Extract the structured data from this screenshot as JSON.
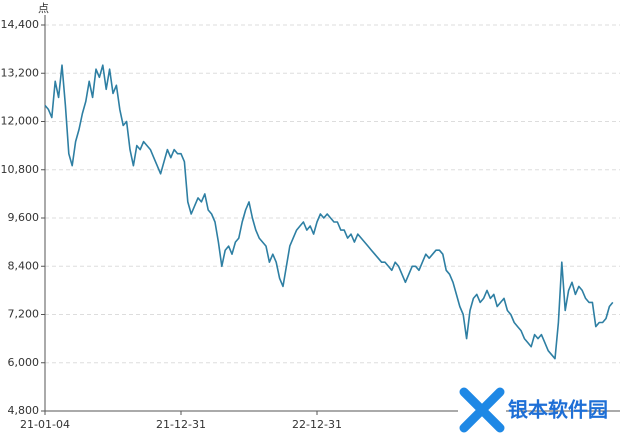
{
  "chart_data": {
    "type": "line",
    "y_label": "点",
    "categories": [
      "21-01-04",
      null,
      null,
      null,
      null,
      null,
      null,
      null,
      null,
      null,
      null,
      null,
      null,
      null,
      null,
      null,
      null,
      null,
      null,
      null,
      null,
      null,
      null,
      null,
      null,
      null,
      null,
      null,
      null,
      null,
      null,
      null,
      null,
      null,
      null,
      null,
      null,
      null,
      null,
      null,
      "21-12-31",
      null,
      null,
      null,
      null,
      null,
      null,
      null,
      null,
      null,
      null,
      null,
      null,
      null,
      null,
      null,
      null,
      null,
      null,
      null,
      null,
      null,
      null,
      null,
      null,
      null,
      null,
      null,
      null,
      null,
      null,
      null,
      null,
      null,
      null,
      null,
      null,
      null,
      null,
      null,
      "22-12-31",
      null,
      null,
      null,
      null,
      null,
      null,
      null,
      null,
      null,
      null,
      null,
      null,
      null,
      null,
      null,
      null,
      null,
      null,
      null,
      null,
      null,
      null,
      null,
      null,
      null,
      null,
      null,
      null,
      null,
      null,
      null,
      null,
      null,
      null,
      null,
      null,
      null,
      null,
      null,
      null,
      null,
      null,
      null,
      null,
      null,
      null,
      null,
      null,
      null,
      null,
      null,
      null,
      null,
      null,
      null,
      null,
      null,
      null,
      null,
      null,
      null,
      null,
      null,
      null,
      null,
      null,
      null,
      null,
      null,
      null,
      null,
      null,
      null,
      null,
      null,
      null,
      null,
      null,
      null,
      null,
      null,
      null,
      null,
      null,
      null,
      null,
      null
    ],
    "series": [
      {
        "color": "#2e7fa3",
        "values": [
          12400,
          12300,
          12100,
          13000,
          12600,
          13400,
          12400,
          11200,
          10900,
          11500,
          11800,
          12200,
          12500,
          13000,
          12600,
          13300,
          13100,
          13400,
          12800,
          13300,
          12700,
          12900,
          12300,
          11900,
          12000,
          11300,
          10900,
          11400,
          11300,
          11500,
          11400,
          11300,
          11100,
          10900,
          10700,
          11000,
          11300,
          11100,
          11300,
          11200,
          11200,
          11000,
          10000,
          9700,
          9900,
          10100,
          10000,
          10200,
          9800,
          9700,
          9500,
          9000,
          8400,
          8800,
          8900,
          8700,
          9000,
          9100,
          9500,
          9800,
          10000,
          9600,
          9300,
          9100,
          9000,
          8900,
          8500,
          8700,
          8500,
          8100,
          7900,
          8400,
          8900,
          9100,
          9300,
          9400,
          9500,
          9300,
          9400,
          9200,
          9500,
          9700,
          9600,
          9700,
          9600,
          9500,
          9500,
          9300,
          9300,
          9100,
          9200,
          9000,
          9200,
          9100,
          9000,
          8900,
          8800,
          8700,
          8600,
          8500,
          8500,
          8400,
          8300,
          8500,
          8400,
          8200,
          8000,
          8200,
          8400,
          8400,
          8300,
          8500,
          8700,
          8600,
          8700,
          8800,
          8800,
          8700,
          8300,
          8200,
          8000,
          7700,
          7400,
          7200,
          6600,
          7300,
          7600,
          7700,
          7500,
          7600,
          7800,
          7600,
          7700,
          7400,
          7500,
          7600,
          7300,
          7200,
          7000,
          6900,
          6800,
          6600,
          6500,
          6400,
          6700,
          6600,
          6700,
          6500,
          6300,
          6200,
          6100,
          7000,
          8500,
          7300,
          7800,
          8000,
          7700,
          7900,
          7800,
          7600,
          7500,
          7500,
          6900,
          7000,
          7000,
          7100,
          7400,
          7500
        ]
      }
    ],
    "ylim": [
      4800,
      14400
    ],
    "yticks": [
      {
        "value": 4800,
        "label": "4,800"
      },
      {
        "value": 6000,
        "label": "6,000"
      },
      {
        "value": 7200,
        "label": "7,200"
      },
      {
        "value": 8400,
        "label": "8,400"
      },
      {
        "value": 9600,
        "label": "9,600"
      },
      {
        "value": 10800,
        "label": "10,800"
      },
      {
        "value": 12000,
        "label": "12,000"
      },
      {
        "value": 13200,
        "label": "13,200"
      },
      {
        "value": 14400,
        "label": "14,400"
      }
    ],
    "grid": true
  },
  "watermark": "银本软件园"
}
